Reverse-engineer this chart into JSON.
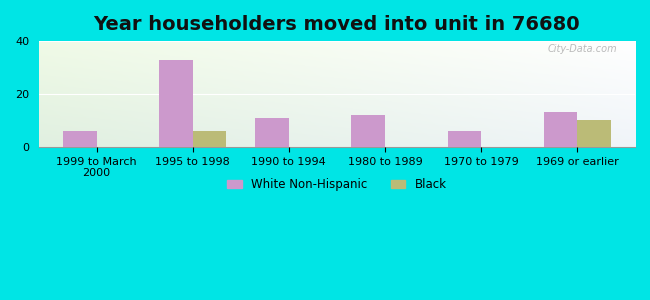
{
  "title": "Year householders moved into unit in 76680",
  "categories": [
    "1999 to March\n2000",
    "1995 to 1998",
    "1990 to 1994",
    "1980 to 1989",
    "1970 to 1979",
    "1969 or earlier"
  ],
  "white_values": [
    6,
    33,
    11,
    12,
    6,
    13
  ],
  "black_values": [
    0,
    6,
    0,
    0,
    0,
    10
  ],
  "white_color": "#cc99cc",
  "black_color": "#bbbb77",
  "ylim": [
    0,
    40
  ],
  "yticks": [
    0,
    20,
    40
  ],
  "bar_width": 0.35,
  "bg_outer": "#00e5e5",
  "legend_white": "White Non-Hispanic",
  "legend_black": "Black",
  "watermark": "City-Data.com",
  "title_fontsize": 14,
  "tick_fontsize": 8
}
